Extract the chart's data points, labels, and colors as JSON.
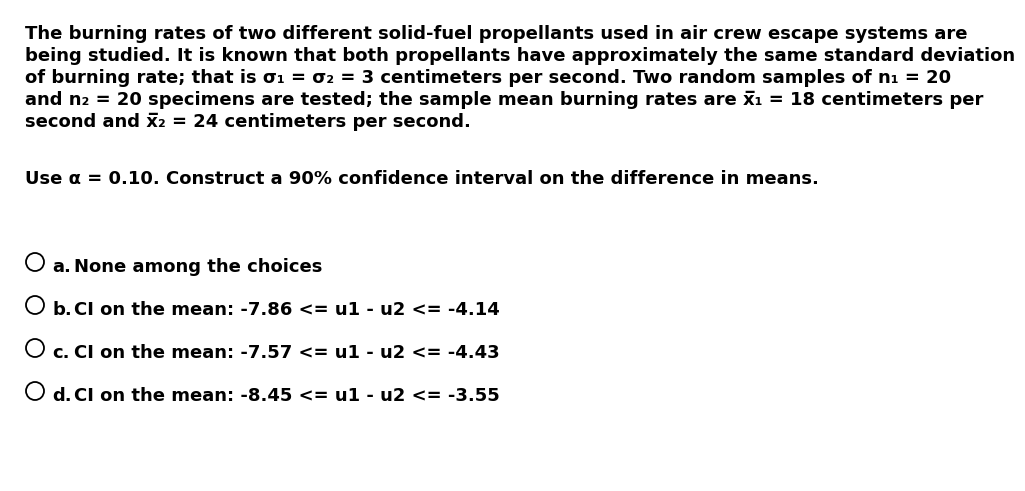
{
  "background_color": "#ffffff",
  "paragraph_lines": [
    "The burning rates of two different solid-fuel propellants used in air crew escape systems are",
    "being studied. It is known that both propellants have approximately the same standard deviation",
    "of burning rate; that is σ₁ = σ₂ = 3 centimeters per second. Two random samples of n₁ = 20",
    "and n₂ = 20 specimens are tested; the sample mean burning rates are x̅₁ = 18 centimeters per",
    "second and x̅₂ = 24 centimeters per second."
  ],
  "question_text": "Use α = 0.10. Construct a 90% confidence interval on the difference in means.",
  "choices": [
    {
      "label": "a.",
      "text": "None among the choices"
    },
    {
      "label": "b.",
      "text": "CI on the mean: -7.86 <= u1 - u2 <= -4.14"
    },
    {
      "label": "c.",
      "text": "CI on the mean: -7.57 <= u1 - u2 <= -4.43"
    },
    {
      "label": "d.",
      "text": "CI on the mean: -8.45 <= u1 - u2 <= -3.55"
    }
  ],
  "font_size_paragraph": 13.0,
  "font_size_question": 13.0,
  "font_size_choices": 13.0,
  "text_color": "#000000",
  "circle_color": "#000000"
}
